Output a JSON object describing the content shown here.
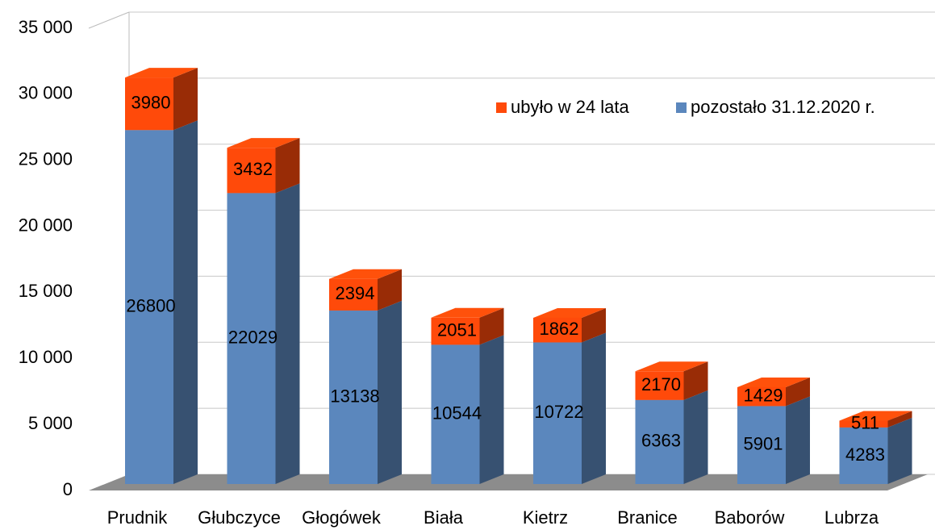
{
  "chart_data": {
    "type": "bar3d_stacked",
    "categories": [
      "Prudnik",
      "Głubczyce",
      "Głogówek",
      "Biała",
      "Kietrz",
      "Branice",
      "Baborów",
      "Lubrza"
    ],
    "series": [
      {
        "name": "ubyło w 24 lata",
        "color": "#ff4a0a",
        "values": [
          3980,
          3432,
          2394,
          2051,
          1862,
          2170,
          1429,
          511
        ]
      },
      {
        "name": "pozostało 31.12.2020 r.",
        "color": "#5b87bd",
        "values": [
          26800,
          22029,
          13138,
          10544,
          10722,
          6363,
          5901,
          4283
        ]
      }
    ],
    "ylim": [
      0,
      35000
    ],
    "yticks": [
      0,
      {
        "value": 5000,
        "label": "5 000"
      },
      {
        "value": 10000,
        "label": "10 000"
      },
      {
        "value": 15000,
        "label": "15 000"
      },
      {
        "value": 20000,
        "label": "20 000"
      },
      {
        "value": 25000,
        "label": "25 000"
      },
      {
        "value": 30000,
        "label": "30 000"
      },
      {
        "value": 35000,
        "label": "35 000"
      }
    ],
    "grid": true,
    "legend": "top-right"
  }
}
